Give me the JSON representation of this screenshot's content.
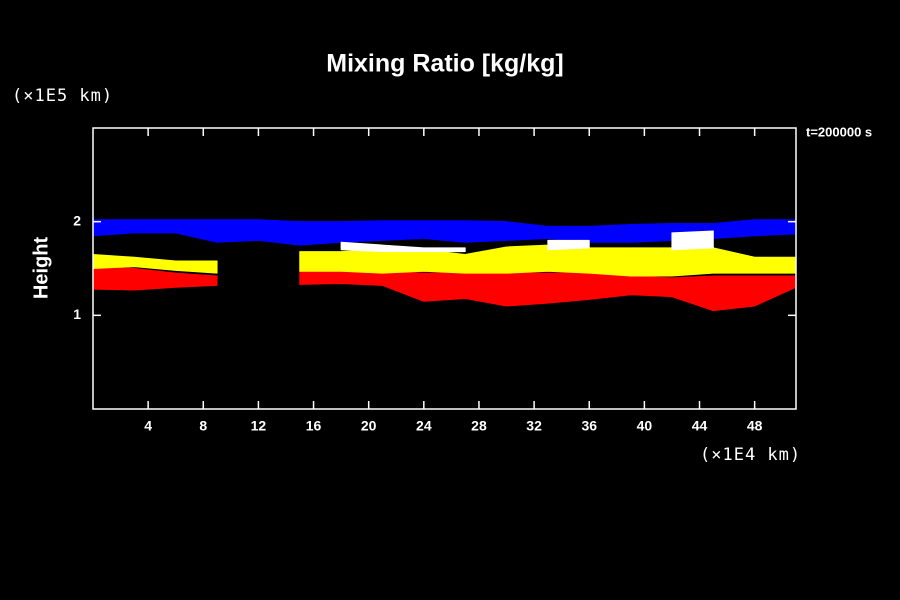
{
  "chart_data": {
    "type": "area",
    "title": "Mixing Ratio [kg/kg]",
    "ylabel": "Height",
    "yunit": "(×1E5 km)",
    "xunit": "(×1E4 km)",
    "annotation": "t=200000 s",
    "xlim": [
      0,
      51
    ],
    "xticks": [
      4,
      8,
      12,
      16,
      20,
      24,
      28,
      32,
      36,
      40,
      44,
      48
    ],
    "ylim": [
      0,
      3
    ],
    "yticks": [
      1,
      2
    ],
    "series": [
      {
        "color": "#ff0000",
        "x": [
          0,
          3,
          6,
          9,
          12,
          15,
          18,
          21,
          24,
          27,
          30,
          33,
          36,
          39,
          42,
          45,
          48,
          51
        ],
        "top": [
          1.52,
          1.5,
          1.45,
          1.42,
          null,
          1.47,
          1.47,
          1.47,
          1.45,
          1.45,
          1.45,
          1.45,
          1.45,
          1.42,
          1.4,
          1.42,
          1.42,
          1.42
        ],
        "bottom": [
          1.28,
          1.27,
          1.3,
          1.32,
          null,
          1.33,
          1.34,
          1.32,
          1.15,
          1.18,
          1.1,
          1.13,
          1.17,
          1.22,
          1.2,
          1.05,
          1.1,
          1.3
        ]
      },
      {
        "color": "#ffff00",
        "x": [
          0,
          3,
          6,
          9,
          12,
          15,
          18,
          21,
          24,
          27,
          30,
          33,
          36,
          39,
          42,
          45,
          48,
          51
        ],
        "top": [
          1.65,
          1.62,
          1.58,
          1.58,
          null,
          1.68,
          1.68,
          1.7,
          1.7,
          1.65,
          1.73,
          1.75,
          1.72,
          1.72,
          1.72,
          1.72,
          1.62,
          1.62
        ],
        "bottom": [
          1.5,
          1.52,
          1.48,
          1.45,
          null,
          1.47,
          1.47,
          1.45,
          1.47,
          1.45,
          1.45,
          1.47,
          1.45,
          1.42,
          1.42,
          1.45,
          1.45,
          1.45
        ]
      },
      {
        "color": "#0000ff",
        "x": [
          0,
          3,
          6,
          9,
          12,
          15,
          18,
          21,
          24,
          27,
          30,
          33,
          36,
          39,
          42,
          45,
          48,
          51
        ],
        "top": [
          2.02,
          2.02,
          2.02,
          2.02,
          2.02,
          2.0,
          2.0,
          2.01,
          2.01,
          2.01,
          2.0,
          1.95,
          1.95,
          1.97,
          1.98,
          1.98,
          2.02,
          2.02
        ],
        "bottom": [
          1.85,
          1.88,
          1.88,
          1.78,
          1.8,
          1.75,
          1.78,
          1.8,
          1.82,
          1.78,
          1.8,
          1.82,
          1.78,
          1.78,
          1.8,
          1.82,
          1.85,
          1.87
        ]
      },
      {
        "color": "#ffffff",
        "x": [
          0,
          3,
          6,
          9,
          12,
          15,
          18,
          21,
          24,
          27,
          30,
          33,
          36,
          39,
          42,
          45,
          48,
          51
        ],
        "top": [
          null,
          null,
          null,
          null,
          null,
          null,
          1.78,
          1.75,
          1.72,
          1.72,
          null,
          1.8,
          1.8,
          null,
          1.88,
          1.9,
          null,
          null
        ],
        "bottom": [
          null,
          null,
          null,
          null,
          null,
          null,
          1.7,
          1.68,
          1.68,
          1.68,
          null,
          1.7,
          1.72,
          null,
          1.7,
          1.72,
          null,
          null
        ]
      }
    ]
  }
}
